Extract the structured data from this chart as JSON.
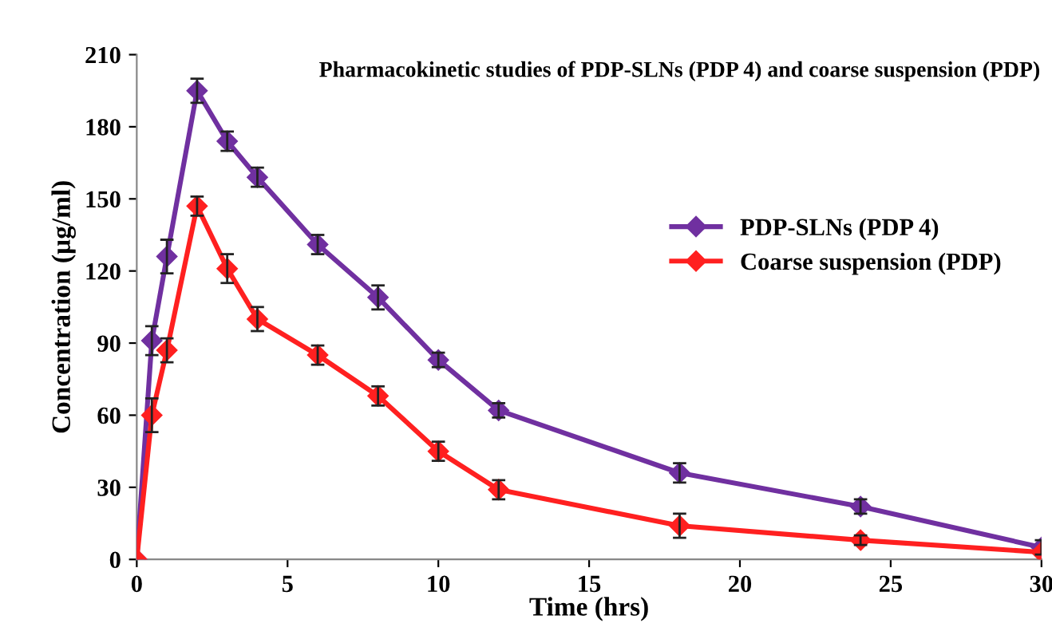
{
  "chart_data": {
    "type": "line",
    "title": "Pharmacokinetic studies of PDP-SLNs (PDP 4) and coarse suspension (PDP)",
    "xlabel": "Time (hrs)",
    "ylabel": "Concentration (µg/ml)",
    "x": [
      0,
      0.5,
      1,
      2,
      3,
      4,
      6,
      8,
      10,
      12,
      18,
      24,
      30
    ],
    "series": [
      {
        "name": "PDP-SLNs (PDP 4)",
        "color": "#7030a0",
        "values": [
          0,
          91,
          126,
          195,
          174,
          159,
          131,
          109,
          83,
          62,
          36,
          22,
          5
        ],
        "errors": [
          null,
          6,
          7,
          5,
          4,
          4,
          4,
          5,
          3,
          3,
          4,
          3,
          3
        ]
      },
      {
        "name": "Coarse suspension (PDP)",
        "color": "#ff2020",
        "values": [
          0,
          60,
          87,
          147,
          121,
          100,
          85,
          68,
          45,
          29,
          14,
          8,
          3
        ],
        "errors": [
          null,
          7,
          5,
          4,
          6,
          5,
          4,
          4,
          4,
          4,
          5,
          2,
          null
        ]
      }
    ],
    "xlim": [
      0,
      30
    ],
    "xticks": [
      0,
      5,
      10,
      15,
      20,
      25,
      30
    ],
    "ylim": [
      0,
      210
    ],
    "yticks": [
      0,
      30,
      60,
      90,
      120,
      150,
      180,
      210
    ],
    "marker": "diamond",
    "grid": false,
    "legend": "right"
  }
}
